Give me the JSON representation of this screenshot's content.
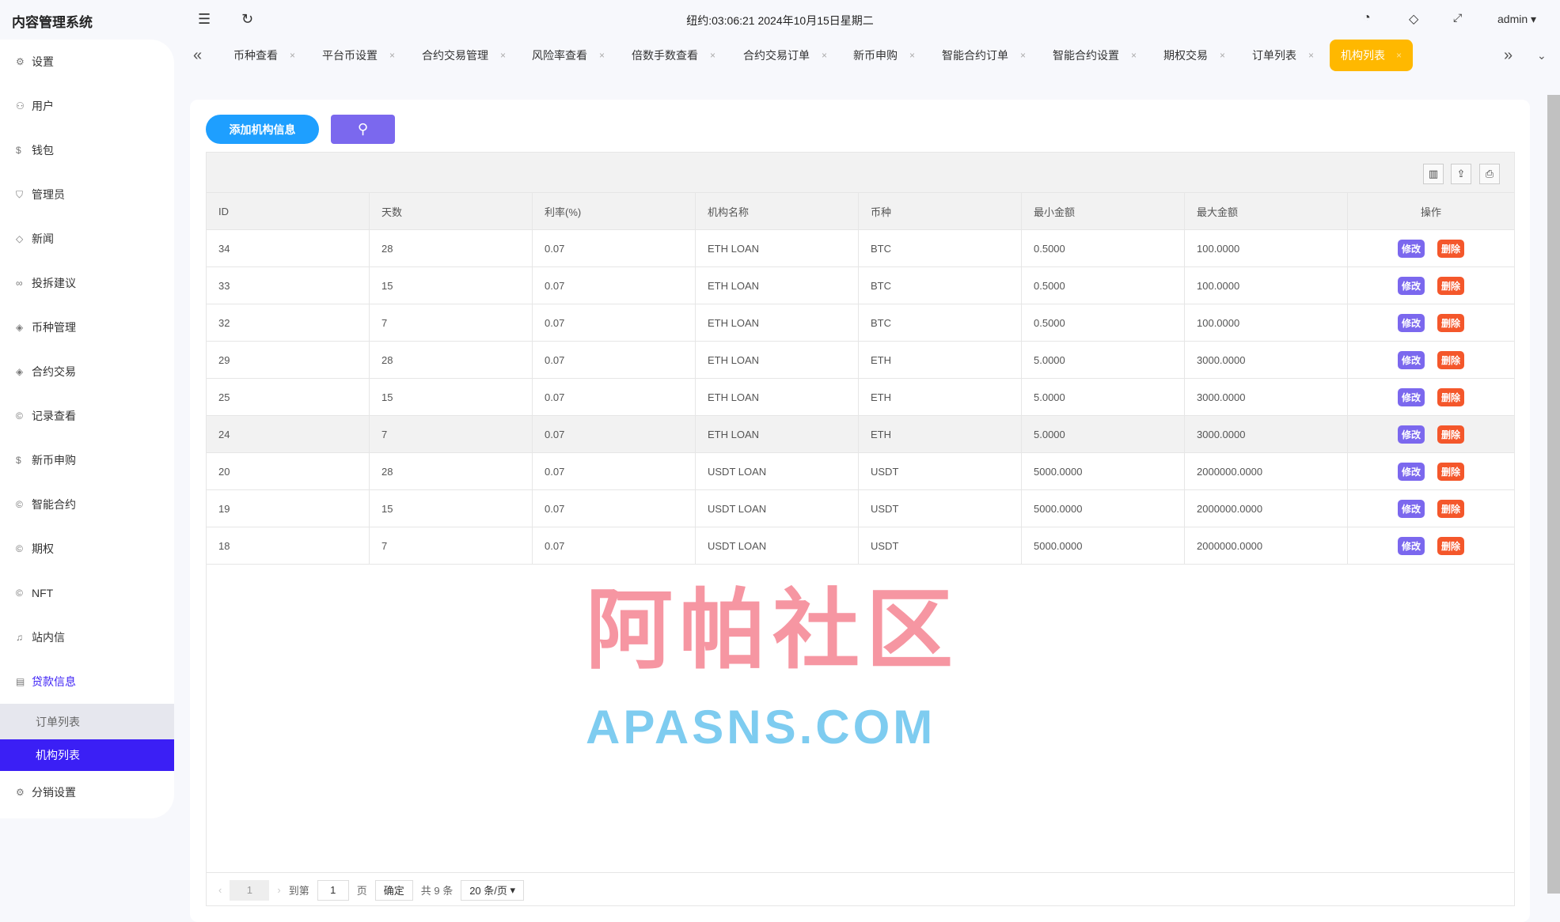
{
  "app_title": "内容管理系统",
  "clock": "纽约:03:06:21 2024年10月15日星期二",
  "user": "admin",
  "sidebar": {
    "items": [
      {
        "label": "设置",
        "icon": "gear-icon"
      },
      {
        "label": "用户",
        "icon": "user-icon"
      },
      {
        "label": "钱包",
        "icon": "dollar-icon"
      },
      {
        "label": "管理员",
        "icon": "shield-icon"
      },
      {
        "label": "新闻",
        "icon": "tag-icon"
      },
      {
        "label": "投拆建议",
        "icon": "link-icon"
      },
      {
        "label": "币种管理",
        "icon": "diamond-icon"
      },
      {
        "label": "合约交易",
        "icon": "diamond-icon"
      },
      {
        "label": "记录查看",
        "icon": "coin-icon"
      },
      {
        "label": "新币申购",
        "icon": "dollar-icon"
      },
      {
        "label": "智能合约",
        "icon": "coin-icon"
      },
      {
        "label": "期权",
        "icon": "coin-icon"
      },
      {
        "label": "NFT",
        "icon": "coin-icon"
      },
      {
        "label": "站内信",
        "icon": "bell-icon"
      },
      {
        "label": "贷款信息",
        "icon": "doc-icon"
      }
    ],
    "subitems": [
      {
        "label": "订单列表"
      },
      {
        "label": "机构列表"
      }
    ],
    "last": {
      "label": "分销设置",
      "icon": "gear-icon"
    }
  },
  "tabs": [
    "币种查看",
    "平台币设置",
    "合约交易管理",
    "风险率查看",
    "倍数手数查看",
    "合约交易订单",
    "新币申购",
    "智能合约订单",
    "智能合约设置",
    "期权交易",
    "订单列表",
    "机构列表"
  ],
  "buttons": {
    "add": "添加机构信息"
  },
  "table": {
    "headers": [
      "ID",
      "天数",
      "利率(%)",
      "机构名称",
      "币种",
      "最小金额",
      "最大金额",
      "操作"
    ],
    "rows": [
      [
        "34",
        "28",
        "0.07",
        "ETH LOAN",
        "BTC",
        "0.5000",
        "100.0000"
      ],
      [
        "33",
        "15",
        "0.07",
        "ETH LOAN",
        "BTC",
        "0.5000",
        "100.0000"
      ],
      [
        "32",
        "7",
        "0.07",
        "ETH LOAN",
        "BTC",
        "0.5000",
        "100.0000"
      ],
      [
        "29",
        "28",
        "0.07",
        "ETH LOAN",
        "ETH",
        "5.0000",
        "3000.0000"
      ],
      [
        "25",
        "15",
        "0.07",
        "ETH LOAN",
        "ETH",
        "5.0000",
        "3000.0000"
      ],
      [
        "24",
        "7",
        "0.07",
        "ETH LOAN",
        "ETH",
        "5.0000",
        "3000.0000"
      ],
      [
        "20",
        "28",
        "0.07",
        "USDT LOAN",
        "USDT",
        "5000.0000",
        "2000000.0000"
      ],
      [
        "19",
        "15",
        "0.07",
        "USDT LOAN",
        "USDT",
        "5000.0000",
        "2000000.0000"
      ],
      [
        "18",
        "7",
        "0.07",
        "USDT LOAN",
        "USDT",
        "5000.0000",
        "2000000.0000"
      ]
    ],
    "edit": "修改",
    "delete": "删除"
  },
  "pager": {
    "current": "1",
    "goto": "到第",
    "page_value": "1",
    "page_unit": "页",
    "confirm": "确定",
    "total": "共 9 条",
    "per_page": "20 条/页"
  },
  "watermark": {
    "cn": "阿帕社区",
    "en": "APASNS.COM"
  },
  "colors": {
    "active_tab": "#ffb800",
    "add_button": "#1e9fff",
    "search_button": "#7b68ee",
    "delete": "#f4572b",
    "sidebar_active": "#3b1ff5"
  }
}
